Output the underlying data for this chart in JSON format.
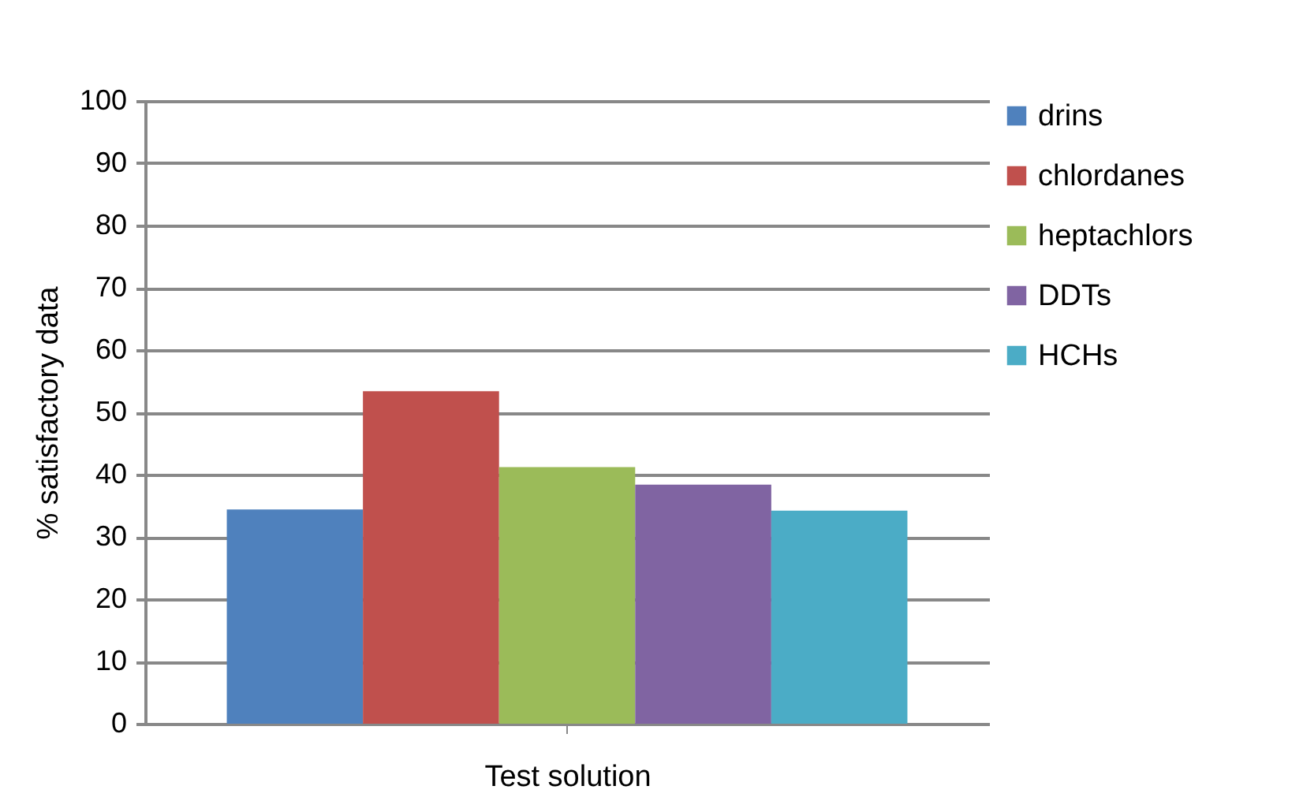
{
  "chart_data": {
    "type": "bar",
    "xlabel": "Test solution",
    "ylabel": "% satisfactory data",
    "categories": [
      null
    ],
    "series": [
      {
        "name": "drins",
        "color": "#4f81bd",
        "values": [
          34.4
        ]
      },
      {
        "name": "chlordanes",
        "color": "#c0504d",
        "values": [
          53.4
        ]
      },
      {
        "name": "heptachlors",
        "color": "#9bbb59",
        "values": [
          41.2
        ]
      },
      {
        "name": "DDTs",
        "color": "#8064a2",
        "values": [
          38.4
        ]
      },
      {
        "name": "HCHs",
        "color": "#4bacc6",
        "values": [
          34.2
        ]
      }
    ],
    "ylim": [
      0,
      100
    ],
    "yticks": [
      0,
      10,
      20,
      30,
      40,
      50,
      60,
      70,
      80,
      90,
      100
    ],
    "grid": "y",
    "legend": "right"
  }
}
